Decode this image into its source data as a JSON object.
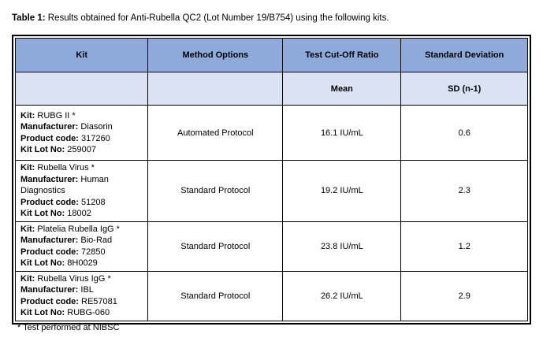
{
  "title": {
    "bold": "Table 1:",
    "rest": " Results obtained for Anti-Rubella QC2 (Lot Number 19/B754) using the following kits."
  },
  "table": {
    "header": [
      "Kit",
      "Method Options",
      "Test Cut-Off Ratio",
      "Standard Deviation"
    ],
    "subheader": {
      "kit": "",
      "method": "",
      "mean": "Mean",
      "sd": "SD (n-1)"
    },
    "field_labels": {
      "kit": "Kit:",
      "manufacturer": "Manufacturer:",
      "product_code": "Product code:",
      "kit_lot": "Kit Lot No:"
    },
    "rows": [
      {
        "kit_name": "RUBG II *",
        "manufacturer": "Diasorin",
        "product_code": "317260",
        "kit_lot": "259007",
        "method": "Automated Protocol",
        "mean": "16.1 IU/mL",
        "sd": "0.6"
      },
      {
        "kit_name": "Rubella Virus *",
        "manufacturer": "Human Diagnostics",
        "product_code": "51208",
        "kit_lot": "18002",
        "method": "Standard Protocol",
        "mean": "19.2 IU/mL",
        "sd": "2.3"
      },
      {
        "kit_name": "Platelia Rubella IgG *",
        "manufacturer": "Bio-Rad",
        "product_code": "72850",
        "kit_lot": "8H0029",
        "method": "Standard Protocol",
        "mean": "23.8 IU/mL",
        "sd": "1.2"
      },
      {
        "kit_name": "Rubella Virus IgG *",
        "manufacturer": "IBL",
        "product_code": "RE57081",
        "kit_lot": "RUBG-060",
        "method": "Standard Protocol",
        "mean": "26.2 IU/mL",
        "sd": "2.9"
      }
    ]
  },
  "footnote": "* Test performed at NIBSC",
  "colors": {
    "header_bg": "#8EAADB",
    "subheader_bg": "#DAE3F3",
    "border": "#000000",
    "text": "#000000",
    "page_bg": "#ffffff"
  }
}
